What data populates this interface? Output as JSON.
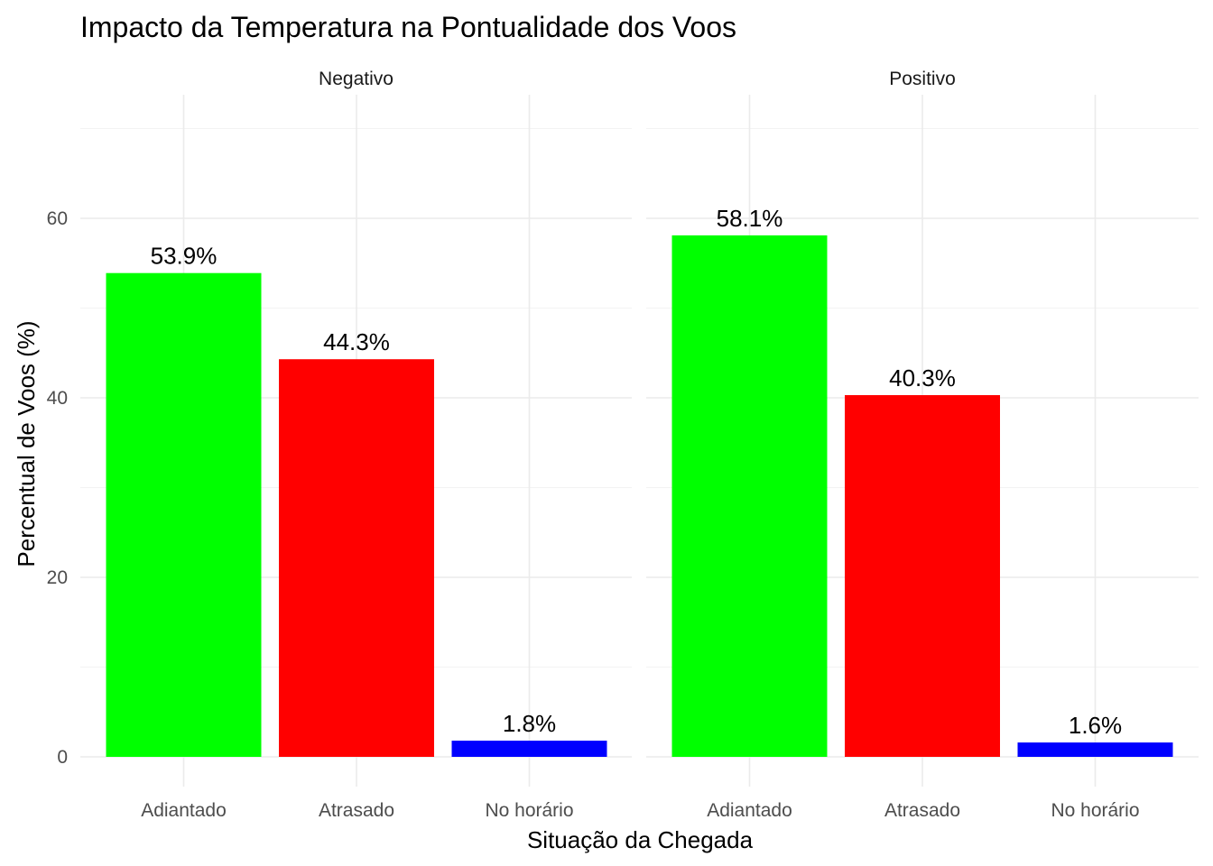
{
  "chart_data": {
    "type": "bar",
    "title": "Impacto da Temperatura na Pontualidade dos Voos",
    "xlabel": "Situação da Chegada",
    "ylabel": "Percentual de Voos (%)",
    "ylim": [
      0,
      70
    ],
    "yticks": [
      0,
      20,
      40,
      60
    ],
    "grid": true,
    "legend": "none",
    "categories": [
      "Adiantado",
      "Atrasado",
      "No horário"
    ],
    "colors": [
      "#00FF00",
      "#FF0000",
      "#0000FF"
    ],
    "facets": [
      {
        "name": "Negativo",
        "values": [
          53.9,
          44.3,
          1.8
        ],
        "labels": [
          "53.9%",
          "44.3%",
          "1.8%"
        ]
      },
      {
        "name": "Positivo",
        "values": [
          58.1,
          40.3,
          1.6
        ],
        "labels": [
          "58.1%",
          "40.3%",
          "1.6%"
        ]
      }
    ]
  }
}
